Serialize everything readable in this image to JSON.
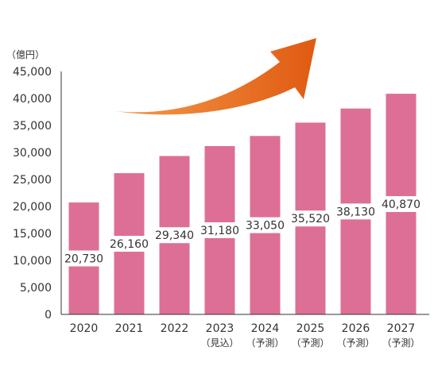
{
  "chart_data": {
    "type": "bar",
    "unit_label": "（億円）",
    "categories": [
      "2020",
      "2021",
      "2022",
      "2023",
      "2024",
      "2025",
      "2026",
      "2027"
    ],
    "category_notes": [
      "",
      "",
      "",
      "（見込）",
      "（予測）",
      "（予測）",
      "（予測）",
      "（予測）"
    ],
    "values": [
      20730,
      26160,
      29340,
      31180,
      33050,
      35520,
      38130,
      40870
    ],
    "value_labels": [
      "20,730",
      "26,160",
      "29,340",
      "31,180",
      "33,050",
      "35,520",
      "38,130",
      "40,870"
    ],
    "y_ticks": [
      "0",
      "5,000",
      "10,000",
      "15,000",
      "20,000",
      "25,000",
      "30,000",
      "35,000",
      "40,000",
      "45,000"
    ],
    "ylim": [
      0,
      45000
    ],
    "y_tick_step": 5000,
    "grid": false,
    "legend": "none",
    "trend_arrow": "upward-curve",
    "colors": {
      "bar": "#dd6f96",
      "label_bg": "#ffffff",
      "arrow_start": "#f39a4a",
      "arrow_end": "#e05a12",
      "axis": "#333333"
    }
  }
}
